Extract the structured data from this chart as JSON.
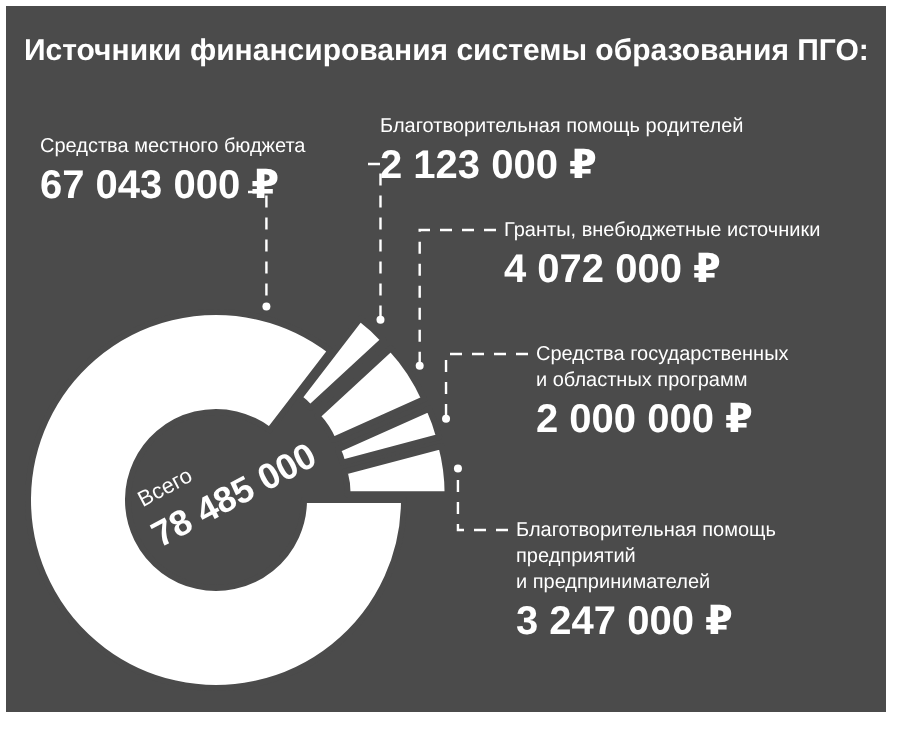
{
  "chart_data": {
    "type": "donut",
    "title": "Источники финансирования системы образования ПГО:",
    "categories": [
      "Средства местного бюджета",
      "Благотворительная помощь родителей",
      "Гранты, внебюджетные источники",
      "Средства государственных\nи областных программ",
      "Благотворительная помощь\nпредприятий\nи предпринимателей"
    ],
    "values": [
      67043000,
      2123000,
      4072000,
      2000000,
      3247000
    ],
    "value_labels": [
      "67 043 000 ₽",
      "2 123 000 ₽",
      "4 072 000 ₽",
      "2 000 000 ₽",
      "3 247 000 ₽"
    ],
    "colors": [
      "#ffffff",
      "#ffffff",
      "#ffffff",
      "#ffffff",
      "#ffffff"
    ],
    "annotations": [
      "Всего",
      "78 485 000"
    ]
  }
}
